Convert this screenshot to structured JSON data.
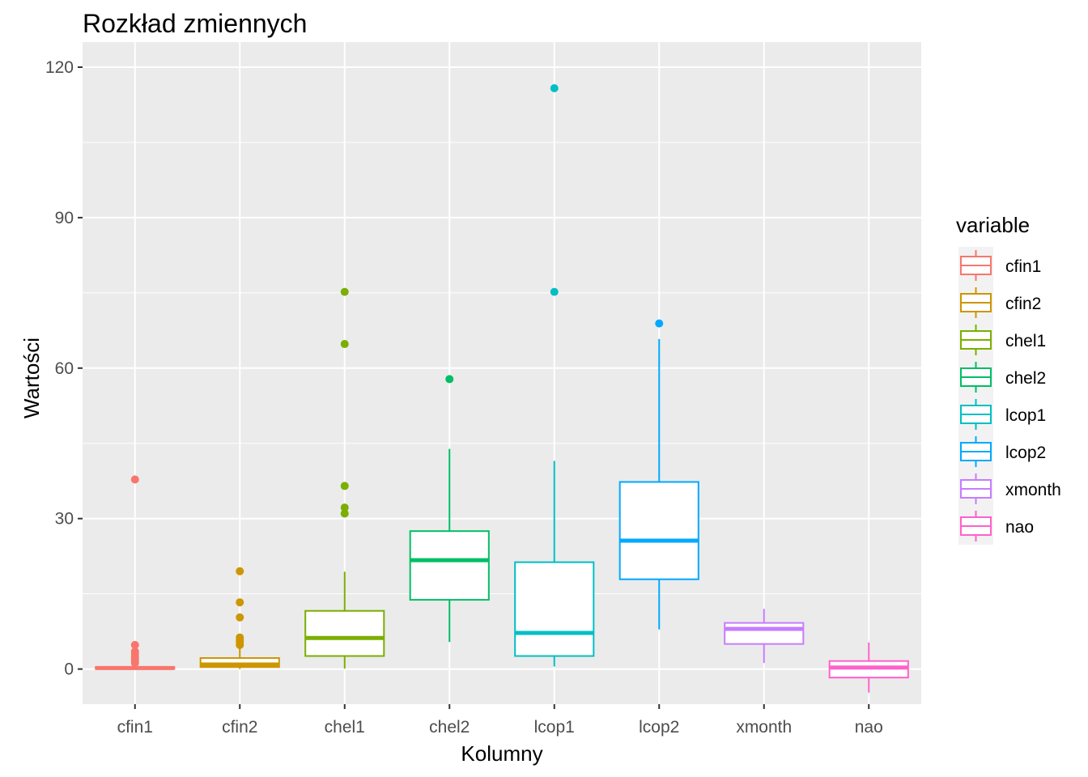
{
  "chart_data": {
    "type": "box",
    "title": "Rozkład zmiennych",
    "xlabel": "Kolumny",
    "ylabel": "Wartości",
    "ylim": [
      -7,
      125
    ],
    "yticks": [
      "0",
      "30",
      "60",
      "90",
      "120"
    ],
    "grid": true,
    "legend": {
      "title": "variable",
      "position": "right"
    },
    "categories": [
      "cfin1",
      "cfin2",
      "chel1",
      "chel2",
      "lcop1",
      "lcop2",
      "xmonth",
      "nao"
    ],
    "series": [
      {
        "name": "cfin1",
        "color": "#F8766D",
        "min": 0,
        "q1": 0.05,
        "median": 0.2,
        "q3": 0.4,
        "max": 0.9,
        "outliers": [
          1.2,
          1.6,
          2.0,
          2.5,
          3.0,
          3.5,
          4.8,
          37.8
        ]
      },
      {
        "name": "cfin2",
        "color": "#CD9600",
        "min": 0,
        "q1": 0.4,
        "median": 0.9,
        "q3": 2.2,
        "max": 4.3,
        "outliers": [
          4.8,
          5.3,
          5.8,
          6.3,
          10.3,
          13.3,
          19.5
        ]
      },
      {
        "name": "chel1",
        "color": "#7CAE00",
        "min": 0.1,
        "q1": 2.6,
        "median": 6.2,
        "q3": 11.6,
        "max": 19.4,
        "outliers": [
          31.0,
          32.2,
          36.5,
          64.8,
          75.2
        ]
      },
      {
        "name": "chel2",
        "color": "#00BE67",
        "min": 5.4,
        "q1": 13.8,
        "median": 21.7,
        "q3": 27.5,
        "max": 43.9,
        "outliers": [
          57.8
        ]
      },
      {
        "name": "lcop1",
        "color": "#00BFC4",
        "min": 0.5,
        "q1": 2.6,
        "median": 7.2,
        "q3": 21.3,
        "max": 41.5,
        "outliers": [
          75.2,
          115.8
        ]
      },
      {
        "name": "lcop2",
        "color": "#00A9FF",
        "min": 7.9,
        "q1": 17.9,
        "median": 25.6,
        "q3": 37.3,
        "max": 65.8,
        "outliers": [
          68.9
        ]
      },
      {
        "name": "xmonth",
        "color": "#C77CFF",
        "min": 1.2,
        "q1": 5.0,
        "median": 8.0,
        "q3": 9.2,
        "max": 12.0,
        "outliers": []
      },
      {
        "name": "nao",
        "color": "#FF61CC",
        "min": -4.7,
        "q1": -1.7,
        "median": 0.3,
        "q3": 1.6,
        "max": 5.3,
        "outliers": []
      }
    ]
  }
}
